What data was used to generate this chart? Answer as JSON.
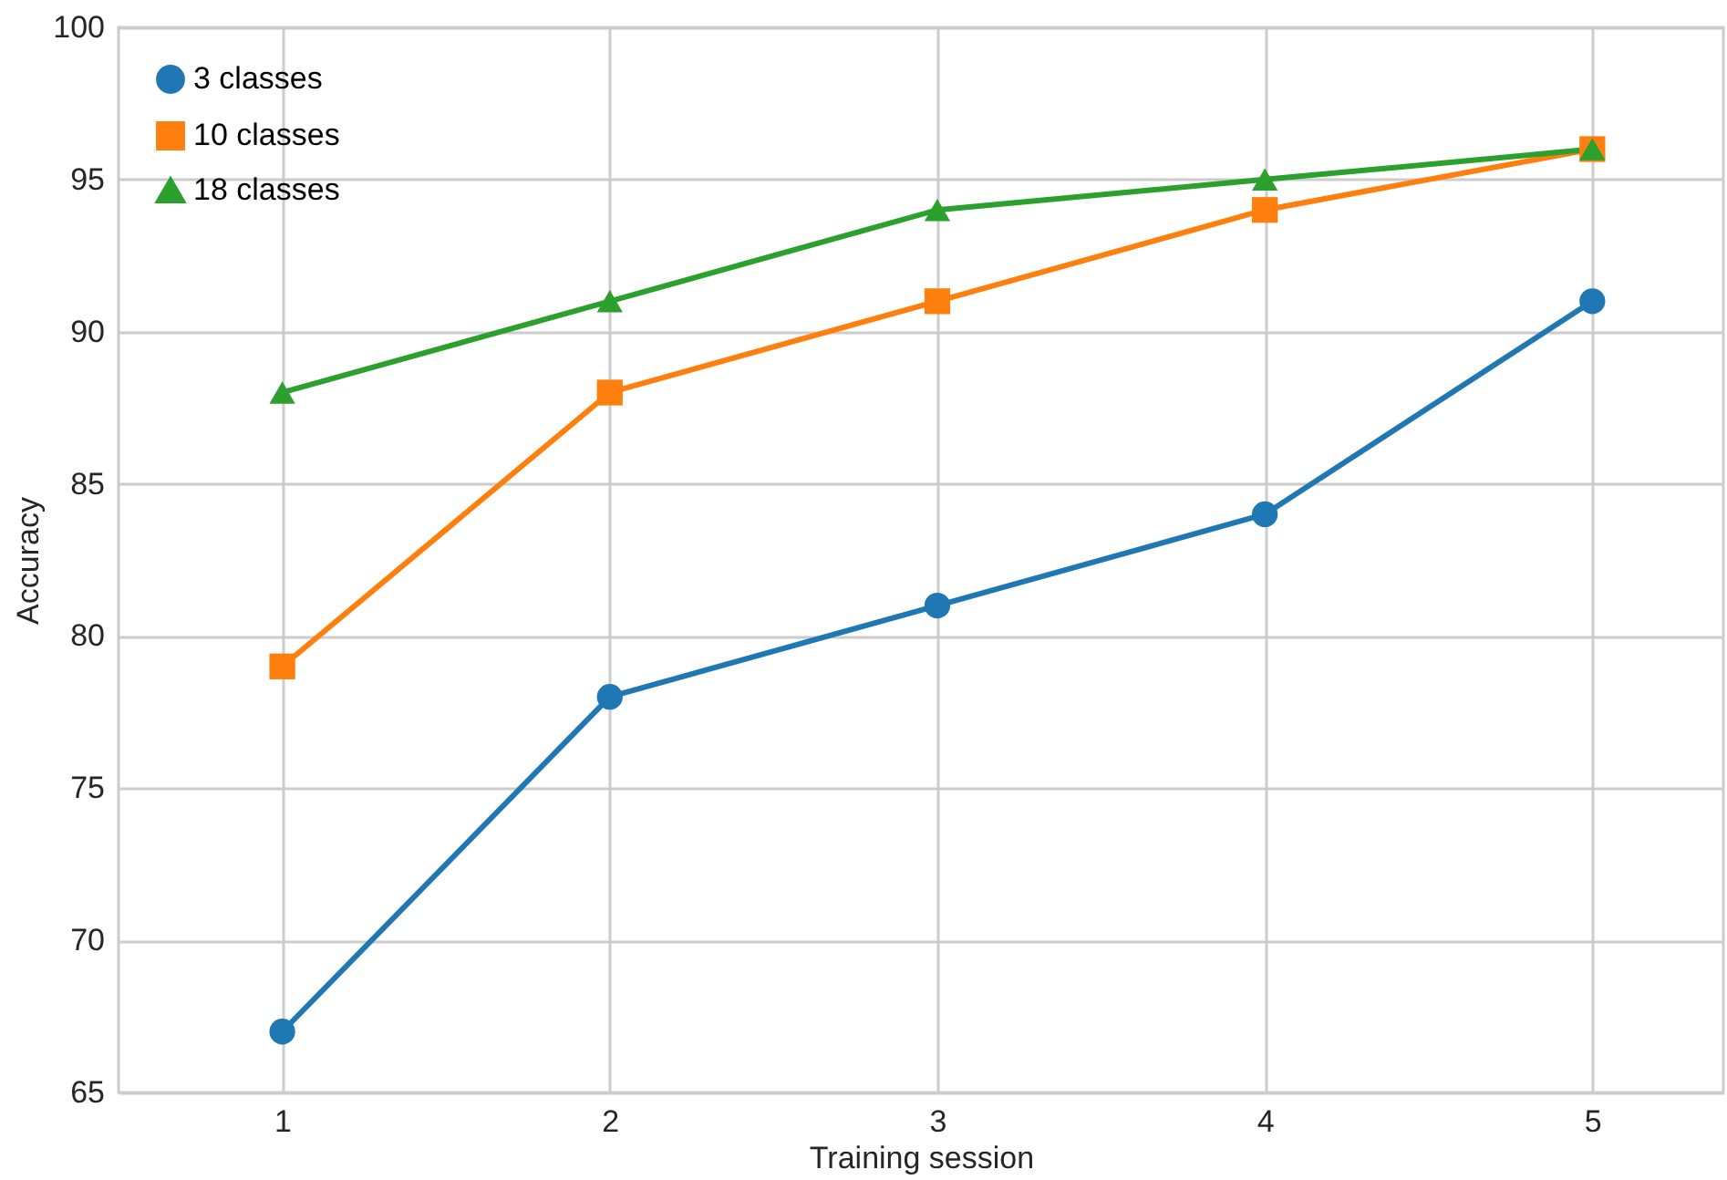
{
  "chart_data": {
    "type": "line",
    "xlabel": "Training session",
    "ylabel": "Accuracy",
    "x": [
      1,
      2,
      3,
      4,
      5
    ],
    "series": [
      {
        "name": "3 classes",
        "color": "#1f77b4",
        "marker": "circle",
        "values": [
          67,
          78,
          81,
          84,
          91
        ]
      },
      {
        "name": "10 classes",
        "color": "#ff7f0e",
        "marker": "square",
        "values": [
          79,
          88,
          91,
          94,
          96
        ]
      },
      {
        "name": "18 classes",
        "color": "#2ca02c",
        "marker": "triangle",
        "values": [
          88,
          91,
          94,
          95,
          96
        ]
      }
    ],
    "xlim": [
      0.5,
      5.4
    ],
    "xticks": [
      1,
      2,
      3,
      4,
      5
    ],
    "ylim": [
      65,
      100
    ],
    "yticks": [
      65,
      70,
      75,
      80,
      85,
      90,
      95,
      100
    ],
    "grid": true,
    "legend": "top left",
    "line_style": "solid"
  }
}
